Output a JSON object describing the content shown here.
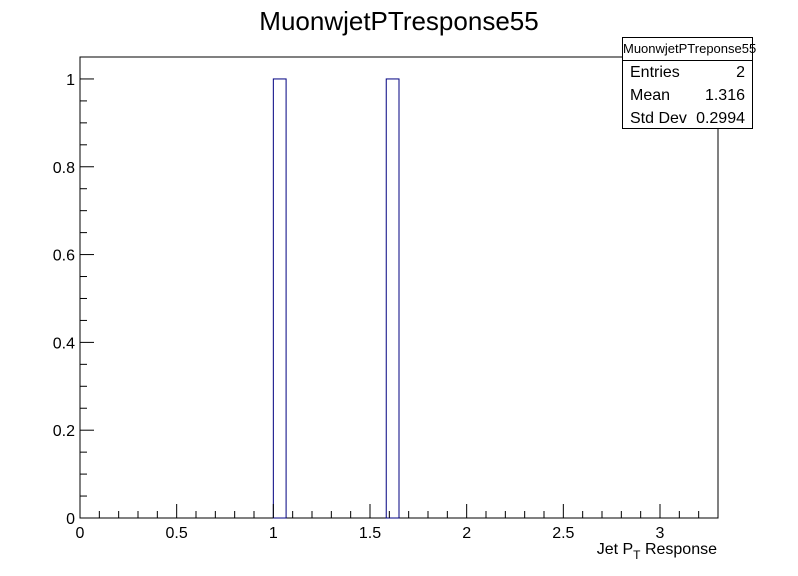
{
  "chart_data": {
    "type": "bar",
    "title": "MuonwjetPTresponse55",
    "xlabel": "Jet P",
    "xlabel_subscript": "T",
    "xlabel_suffix": " Response",
    "ylabel": "",
    "xlim": [
      0,
      3.3
    ],
    "ylim": [
      0,
      1.05
    ],
    "x_ticks": [
      0,
      0.5,
      1,
      1.5,
      2,
      2.5,
      3
    ],
    "x_tick_labels": [
      "0",
      "0.5",
      "1",
      "1.5",
      "2",
      "2.5",
      "3"
    ],
    "y_ticks": [
      0,
      0.2,
      0.4,
      0.6,
      0.8,
      1
    ],
    "y_tick_labels": [
      "0",
      "0.2",
      "0.4",
      "0.6",
      "0.8",
      "1"
    ],
    "bins": [
      {
        "x_low": 1.0,
        "x_high": 1.066,
        "value": 1
      },
      {
        "x_low": 1.584,
        "x_high": 1.65,
        "value": 1
      }
    ],
    "line_color": "#000080",
    "grid": false,
    "legend": "none"
  },
  "stats": {
    "title": "MuonwjetPTreponse55",
    "rows": [
      {
        "label": "Entries",
        "value": "2"
      },
      {
        "label": "Mean",
        "value": "1.316"
      },
      {
        "label": "Std Dev",
        "value": "0.2994"
      }
    ]
  }
}
